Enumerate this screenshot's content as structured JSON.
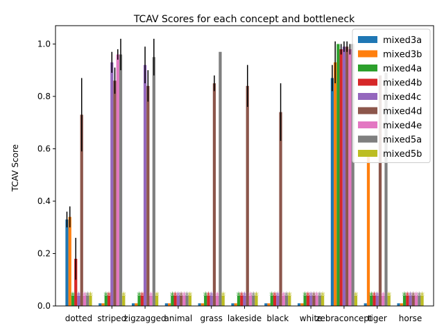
{
  "chart_data": {
    "type": "bar",
    "title": "TCAV Scores for each concept and bottleneck",
    "xlabel": "",
    "ylabel": "TCAV Score",
    "ylim": [
      0,
      1.07
    ],
    "yticks": [
      "0.0",
      "0.2",
      "0.4",
      "0.6",
      "0.8",
      "1.0"
    ],
    "grid": false,
    "legend_position": "top-right",
    "categories": [
      "dotted",
      "striped",
      "zigzagged",
      "animal",
      "grass",
      "lakeside",
      "black",
      "white",
      "zebraconcept",
      "tiger",
      "horse"
    ],
    "series": [
      {
        "name": "mixed3a",
        "color": "#1f77b4",
        "values": [
          0.33,
          0.01,
          0.01,
          0.01,
          0.01,
          0.01,
          0.01,
          0.01,
          0.87,
          0.01,
          0.01
        ],
        "errors": [
          0.03,
          0,
          0,
          0,
          0,
          0,
          0,
          0,
          0.05,
          0,
          0
        ],
        "marker": [
          false,
          false,
          false,
          false,
          false,
          false,
          false,
          false,
          false,
          false,
          false
        ]
      },
      {
        "name": "mixed3b",
        "color": "#ff7f0e",
        "values": [
          0.34,
          0.01,
          0.01,
          0.01,
          0.01,
          0.01,
          0.01,
          0.01,
          0.93,
          0.59,
          0.01
        ],
        "errors": [
          0.04,
          0,
          0,
          0,
          0,
          0,
          0,
          0,
          0.08,
          0,
          0
        ],
        "marker": [
          false,
          false,
          false,
          false,
          false,
          false,
          false,
          false,
          false,
          false,
          false
        ]
      },
      {
        "name": "mixed4a",
        "color": "#2ca02c",
        "values": [
          0.04,
          0.04,
          0.04,
          0.04,
          0.04,
          0.04,
          0.04,
          0.04,
          1.0,
          0.04,
          0.04
        ],
        "errors": [
          0,
          0,
          0,
          0,
          0,
          0,
          0,
          0,
          0,
          0,
          0
        ],
        "marker": [
          true,
          true,
          true,
          true,
          true,
          true,
          true,
          true,
          false,
          true,
          true
        ]
      },
      {
        "name": "mixed4b",
        "color": "#d62728",
        "values": [
          0.18,
          0.04,
          0.04,
          0.04,
          0.04,
          0.04,
          0.04,
          0.04,
          0.98,
          0.04,
          0.04
        ],
        "errors": [
          0.08,
          0,
          0,
          0,
          0,
          0,
          0,
          0,
          0.02,
          0,
          0
        ],
        "marker": [
          false,
          true,
          true,
          true,
          true,
          true,
          true,
          true,
          false,
          true,
          true
        ]
      },
      {
        "name": "mixed4c",
        "color": "#9467bd",
        "values": [
          0.04,
          0.93,
          0.92,
          0.04,
          0.04,
          0.04,
          0.04,
          0.04,
          0.99,
          0.04,
          0.04
        ],
        "errors": [
          0,
          0.04,
          0.07,
          0,
          0,
          0,
          0,
          0,
          0.02,
          0,
          0
        ],
        "marker": [
          true,
          false,
          false,
          true,
          true,
          true,
          true,
          true,
          false,
          true,
          true
        ]
      },
      {
        "name": "mixed4d",
        "color": "#8c564b",
        "values": [
          0.73,
          0.86,
          0.84,
          0.04,
          0.85,
          0.84,
          0.74,
          0.04,
          0.99,
          0.88,
          0.04
        ],
        "errors": [
          0.14,
          0.05,
          0.06,
          0,
          0.03,
          0.08,
          0.11,
          0,
          0.02,
          0,
          0
        ],
        "marker": [
          false,
          false,
          false,
          true,
          false,
          false,
          false,
          true,
          false,
          false,
          true
        ]
      },
      {
        "name": "mixed4e",
        "color": "#e377c2",
        "values": [
          0.04,
          0.96,
          0.04,
          0.04,
          0.04,
          0.04,
          0.04,
          0.04,
          0.98,
          0.04,
          0.04
        ],
        "errors": [
          0,
          0.02,
          0,
          0,
          0,
          0,
          0,
          0,
          0.02,
          0,
          0
        ],
        "marker": [
          true,
          false,
          true,
          true,
          true,
          true,
          true,
          true,
          false,
          true,
          true
        ]
      },
      {
        "name": "mixed5a",
        "color": "#7f7f7f",
        "values": [
          0.04,
          0.96,
          0.95,
          0.04,
          0.97,
          0.04,
          0.04,
          0.04,
          1.0,
          0.89,
          0.04
        ],
        "errors": [
          0,
          0.06,
          0.07,
          0,
          0,
          0,
          0,
          0,
          0,
          0,
          0
        ],
        "marker": [
          true,
          false,
          false,
          true,
          false,
          true,
          true,
          true,
          false,
          false,
          true
        ]
      },
      {
        "name": "mixed5b",
        "color": "#bcbd22",
        "values": [
          0.04,
          0.04,
          0.04,
          0.04,
          0.04,
          0.04,
          0.04,
          0.04,
          0.04,
          0.04,
          0.04
        ],
        "errors": [
          0,
          0,
          0,
          0,
          0,
          0,
          0,
          0,
          0,
          0,
          0
        ],
        "marker": [
          true,
          true,
          true,
          true,
          true,
          true,
          true,
          true,
          true,
          true,
          true
        ]
      }
    ]
  }
}
